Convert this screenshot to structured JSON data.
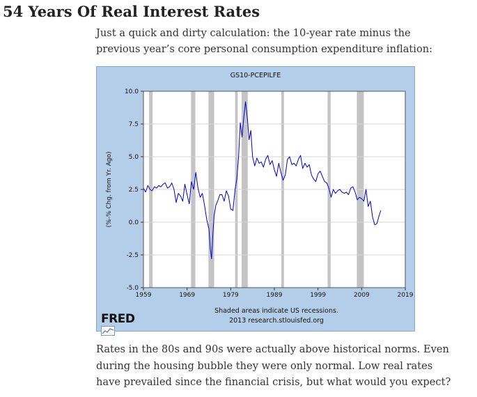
{
  "post": {
    "title": "54 Years Of Real Interest Rates",
    "intro_lines": [
      "Just a quick and dirty calculation: the 10-year rate minus the",
      "previous year’s core personal consumption expenditure inflation:"
    ],
    "outro_lines": [
      "Rates in the 80s and 90s were actually above historical norms. Even",
      "during the housing bubble they were only normal. Low real rates",
      "have prevailed since the financial crisis, but what would you expect?"
    ]
  },
  "chart_data": {
    "type": "line",
    "title": "GS10-PCEPILFE",
    "ylabel": "(%-% Chg. from Yr. Ago)",
    "xlim": [
      1959,
      2019
    ],
    "ylim": [
      -5.0,
      10.0
    ],
    "x_ticks": [
      1959,
      1969,
      1979,
      1989,
      1999,
      2009,
      2019
    ],
    "x_tick_labels": [
      "1959",
      "1969",
      "1979",
      "1989",
      "1999",
      "2009",
      "2019"
    ],
    "y_ticks": [
      -5.0,
      -2.5,
      0.0,
      2.5,
      5.0,
      7.5,
      10.0
    ],
    "y_tick_labels": [
      "-5.0",
      "-2.5",
      "0.0",
      "2.5",
      "5.0",
      "7.5",
      "10.0"
    ],
    "grid": true,
    "recessions": [
      [
        1960.3,
        1961.1
      ],
      [
        1969.9,
        1970.9
      ],
      [
        1973.9,
        1975.2
      ],
      [
        1980.0,
        1980.6
      ],
      [
        1981.5,
        1982.9
      ],
      [
        1990.6,
        1991.2
      ],
      [
        2001.2,
        2001.9
      ],
      [
        2007.9,
        2009.5
      ]
    ],
    "series": [
      {
        "color": "#0000cc",
        "x": [
          1959.0,
          1959.5,
          1960.0,
          1960.5,
          1961.0,
          1961.5,
          1962.0,
          1962.5,
          1963.0,
          1963.5,
          1964.0,
          1964.5,
          1965.0,
          1965.5,
          1966.0,
          1966.5,
          1967.0,
          1967.5,
          1968.0,
          1968.5,
          1969.0,
          1969.5,
          1970.0,
          1970.5,
          1971.0,
          1971.5,
          1972.0,
          1972.5,
          1973.0,
          1973.5,
          1974.0,
          1974.3,
          1974.6,
          1974.9,
          1975.2,
          1975.6,
          1976.0,
          1976.5,
          1977.0,
          1977.5,
          1978.0,
          1978.5,
          1979.0,
          1979.5,
          1980.0,
          1980.4,
          1980.8,
          1981.2,
          1981.6,
          1982.0,
          1982.4,
          1982.8,
          1983.2,
          1983.6,
          1984.0,
          1984.5,
          1985.0,
          1985.5,
          1986.0,
          1986.5,
          1987.0,
          1987.5,
          1988.0,
          1988.5,
          1989.0,
          1989.5,
          1990.0,
          1990.5,
          1991.0,
          1991.5,
          1992.0,
          1992.5,
          1993.0,
          1993.5,
          1994.0,
          1994.5,
          1995.0,
          1995.5,
          1996.0,
          1996.5,
          1997.0,
          1997.5,
          1998.0,
          1998.5,
          1999.0,
          1999.5,
          2000.0,
          2000.5,
          2001.0,
          2001.5,
          2002.0,
          2002.5,
          2003.0,
          2003.5,
          2004.0,
          2004.5,
          2005.0,
          2005.5,
          2006.0,
          2006.5,
          2007.0,
          2007.5,
          2008.0,
          2008.5,
          2009.0,
          2009.5,
          2010.0,
          2010.5,
          2011.0,
          2011.5,
          2012.0,
          2012.5,
          2013.0,
          2013.4
        ],
        "values": [
          2.6,
          2.3,
          2.8,
          2.5,
          2.4,
          2.7,
          2.6,
          2.8,
          2.7,
          2.9,
          3.0,
          2.6,
          2.7,
          3.0,
          2.5,
          1.5,
          2.2,
          2.0,
          1.6,
          2.9,
          2.1,
          1.4,
          3.1,
          2.5,
          3.8,
          2.6,
          1.9,
          2.2,
          1.3,
          0.2,
          -0.5,
          -2.0,
          -2.8,
          -1.0,
          0.5,
          1.3,
          1.6,
          2.1,
          2.1,
          1.6,
          2.4,
          2.0,
          1.0,
          0.9,
          2.5,
          3.3,
          5.0,
          7.6,
          6.5,
          8.0,
          9.2,
          8.0,
          6.3,
          7.0,
          5.0,
          4.3,
          4.9,
          4.5,
          4.6,
          4.2,
          4.8,
          5.1,
          4.4,
          4.7,
          4.0,
          3.5,
          4.5,
          3.8,
          3.2,
          3.6,
          4.8,
          5.0,
          4.4,
          4.5,
          4.3,
          4.8,
          5.1,
          4.1,
          4.5,
          4.2,
          4.4,
          3.6,
          3.3,
          3.1,
          3.7,
          3.9,
          3.5,
          3.1,
          3.0,
          2.6,
          1.9,
          2.5,
          2.2,
          2.4,
          2.5,
          2.3,
          2.2,
          2.3,
          2.1,
          2.6,
          2.7,
          2.3,
          1.7,
          1.9,
          1.8,
          1.6,
          2.5,
          1.2,
          1.6,
          0.4,
          -0.2,
          -0.1,
          0.5,
          0.9
        ]
      }
    ],
    "footer_lines": [
      "Shaded areas indicate US recessions.",
      "2013 research.stlouisfed.org"
    ],
    "logo_text": "FRED"
  }
}
